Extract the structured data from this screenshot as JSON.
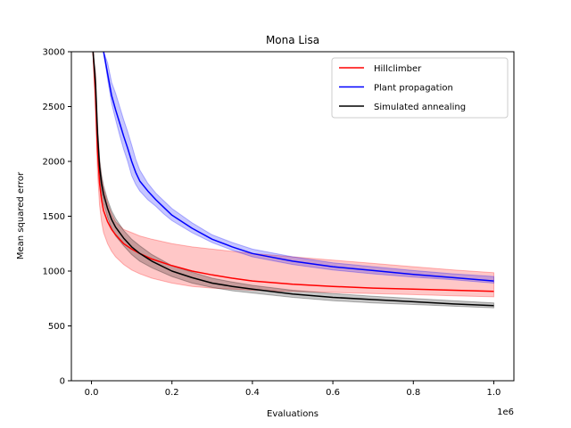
{
  "chart_data": {
    "type": "line",
    "title": "Mona Lisa",
    "xlabel": "Evaluations",
    "ylabel": "Mean squared error",
    "x_scale_label": "1e6",
    "xlim": [
      -0.05,
      1.05
    ],
    "ylim": [
      0,
      3000
    ],
    "x_ticks": [
      0.0,
      0.2,
      0.4,
      0.6,
      0.8,
      1.0
    ],
    "x_tick_labels": [
      "0.0",
      "0.2",
      "0.4",
      "0.6",
      "0.8",
      "1.0"
    ],
    "y_ticks": [
      0,
      500,
      1000,
      1500,
      2000,
      2500,
      3000
    ],
    "y_tick_labels": [
      "0",
      "500",
      "1000",
      "1500",
      "2000",
      "2500",
      "3000"
    ],
    "grid": false,
    "legend_position": "top-right",
    "series": [
      {
        "name": "Hillclimber",
        "color": "#ff0000",
        "band_color": "#ff0000",
        "x": [
          0.004,
          0.01,
          0.015,
          0.02,
          0.025,
          0.03,
          0.04,
          0.05,
          0.06,
          0.08,
          0.1,
          0.12,
          0.15,
          0.2,
          0.25,
          0.3,
          0.35,
          0.4,
          0.5,
          0.6,
          0.7,
          0.8,
          0.9,
          1.0
        ],
        "values": [
          3000,
          2600,
          2100,
          1800,
          1650,
          1550,
          1450,
          1380,
          1330,
          1250,
          1200,
          1160,
          1110,
          1050,
          1000,
          965,
          935,
          910,
          880,
          860,
          845,
          835,
          825,
          815
        ],
        "lower": [
          3000,
          2400,
          1900,
          1600,
          1450,
          1350,
          1250,
          1180,
          1130,
          1060,
          1010,
          975,
          935,
          890,
          860,
          845,
          835,
          825,
          815,
          805,
          795,
          785,
          775,
          765
        ],
        "upper": [
          3000,
          2800,
          2300,
          2000,
          1850,
          1750,
          1620,
          1520,
          1450,
          1380,
          1350,
          1320,
          1290,
          1250,
          1220,
          1200,
          1180,
          1160,
          1130,
          1100,
          1070,
          1040,
          1010,
          985
        ]
      },
      {
        "name": "Plant propagation",
        "color": "#0000ff",
        "band_color": "#0000ff",
        "x": [
          0.03,
          0.04,
          0.05,
          0.06,
          0.07,
          0.08,
          0.09,
          0.1,
          0.11,
          0.12,
          0.14,
          0.16,
          0.18,
          0.2,
          0.25,
          0.3,
          0.35,
          0.4,
          0.5,
          0.6,
          0.7,
          0.8,
          0.9,
          1.0
        ],
        "values": [
          3000,
          2800,
          2600,
          2470,
          2350,
          2230,
          2120,
          2000,
          1900,
          1820,
          1730,
          1650,
          1580,
          1510,
          1390,
          1290,
          1220,
          1160,
          1090,
          1040,
          1005,
          970,
          940,
          910
        ],
        "lower": [
          3000,
          2750,
          2530,
          2380,
          2240,
          2110,
          2000,
          1870,
          1790,
          1730,
          1650,
          1590,
          1520,
          1460,
          1350,
          1260,
          1190,
          1130,
          1060,
          1010,
          975,
          945,
          920,
          890
        ],
        "upper": [
          3000,
          2900,
          2720,
          2620,
          2500,
          2380,
          2270,
          2150,
          2020,
          1920,
          1800,
          1710,
          1640,
          1570,
          1440,
          1330,
          1260,
          1200,
          1130,
          1075,
          1040,
          1005,
          975,
          950
        ]
      },
      {
        "name": "Simulated annealing",
        "color": "#000000",
        "band_color": "#000000",
        "x": [
          0.004,
          0.01,
          0.015,
          0.02,
          0.025,
          0.03,
          0.04,
          0.05,
          0.06,
          0.08,
          0.1,
          0.12,
          0.15,
          0.2,
          0.25,
          0.3,
          0.35,
          0.4,
          0.5,
          0.6,
          0.7,
          0.8,
          0.9,
          1.0
        ],
        "values": [
          3000,
          2700,
          2250,
          1950,
          1800,
          1700,
          1570,
          1470,
          1400,
          1300,
          1220,
          1160,
          1090,
          1000,
          940,
          890,
          860,
          835,
          790,
          760,
          740,
          720,
          700,
          685
        ],
        "lower": [
          3000,
          2600,
          2150,
          1870,
          1720,
          1620,
          1490,
          1390,
          1320,
          1230,
          1150,
          1090,
          1030,
          950,
          890,
          850,
          820,
          800,
          760,
          730,
          710,
          695,
          680,
          665
        ],
        "upper": [
          3000,
          2800,
          2350,
          2030,
          1880,
          1780,
          1650,
          1550,
          1480,
          1370,
          1290,
          1230,
          1150,
          1050,
          990,
          935,
          900,
          870,
          825,
          795,
          770,
          750,
          730,
          710
        ]
      }
    ]
  }
}
